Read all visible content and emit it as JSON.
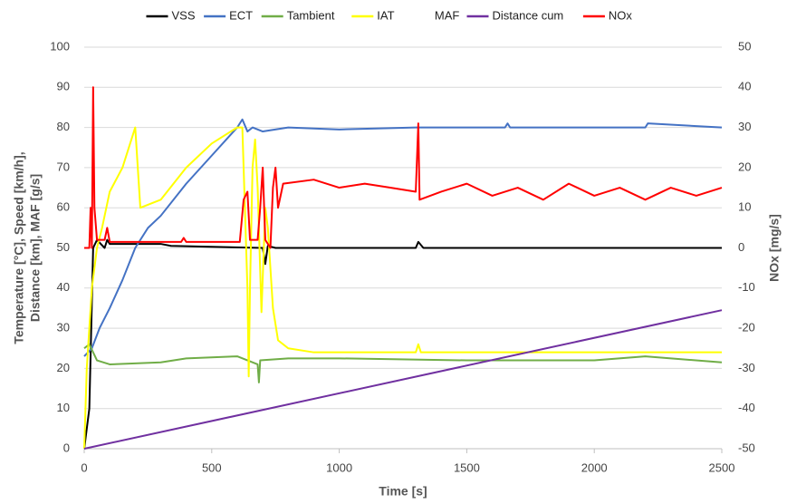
{
  "chart_data": {
    "type": "line",
    "xlabel": "Time [s]",
    "ylabel": [
      "Temperature [°C], Speed [km/h],",
      "Distance [km], MAF [g/s]"
    ],
    "y2label": "NOx [mg/s]",
    "xlim": [
      0,
      2500
    ],
    "xticks": [
      0,
      500,
      1000,
      1500,
      2000,
      2500
    ],
    "ylim": [
      0,
      100
    ],
    "yticks": [
      0,
      10,
      20,
      30,
      40,
      50,
      60,
      70,
      80,
      90,
      100
    ],
    "y2lim": [
      -50,
      50
    ],
    "y2ticks": [
      -50,
      -40,
      -30,
      -20,
      -10,
      0,
      10,
      20,
      30,
      40,
      50
    ],
    "grid": true,
    "legend": "top",
    "series": [
      {
        "name": "VSS",
        "color": "#000000",
        "x": [
          0,
          20,
          35,
          50,
          80,
          90,
          100,
          300,
          340,
          700,
          710,
          720,
          750,
          1300,
          1310,
          1330,
          2500
        ],
        "values": [
          0,
          10,
          50,
          52,
          50,
          52,
          51,
          51,
          50.5,
          50,
          46,
          50.5,
          50,
          50,
          51.5,
          50,
          50
        ]
      },
      {
        "name": "ECT",
        "color": "#4472c4",
        "x": [
          0,
          30,
          60,
          100,
          150,
          200,
          250,
          300,
          400,
          500,
          600,
          620,
          640,
          660,
          700,
          800,
          1000,
          1300,
          1650,
          1660,
          1670,
          2200,
          2210,
          2500
        ],
        "values": [
          23,
          25,
          30,
          35,
          42,
          50,
          55,
          58,
          66,
          73,
          80,
          82,
          79,
          80,
          79,
          80,
          79.5,
          80,
          80,
          81,
          80,
          80,
          81,
          80
        ]
      },
      {
        "name": "Tambient",
        "color": "#70ad47",
        "x": [
          0,
          20,
          50,
          100,
          300,
          400,
          600,
          680,
          685,
          690,
          800,
          1000,
          1500,
          2000,
          2200,
          2500
        ],
        "values": [
          25,
          26,
          22,
          21,
          21.5,
          22.5,
          23,
          21,
          16.5,
          22,
          22.5,
          22.5,
          22,
          22,
          23,
          21.5
        ]
      },
      {
        "name": "IAT",
        "color": "#ffff00",
        "x": [
          0,
          10,
          30,
          50,
          70,
          100,
          150,
          200,
          220,
          300,
          400,
          500,
          600,
          620,
          630,
          640,
          645,
          650,
          660,
          670,
          680,
          695,
          710,
          720,
          740,
          760,
          800,
          900,
          1300,
          1310,
          1320,
          2500
        ],
        "values": [
          0,
          20,
          40,
          50,
          55,
          64,
          70,
          80,
          60,
          62,
          70,
          76,
          80,
          80,
          60,
          40,
          18,
          40,
          70,
          77,
          65,
          34,
          60,
          55,
          35,
          27,
          25,
          24,
          24,
          26,
          24,
          24
        ]
      },
      {
        "name": "MAF",
        "color": "#ffffff",
        "x": [],
        "values": []
      },
      {
        "name": "Distance cum",
        "color": "#7030a0",
        "x": [
          0,
          2500
        ],
        "values": [
          0,
          34.5
        ]
      },
      {
        "name": "NOx",
        "color": "#ff0000",
        "axis": "y2",
        "x": [
          0,
          20,
          25,
          30,
          35,
          40,
          50,
          80,
          90,
          100,
          300,
          380,
          390,
          400,
          610,
          625,
          640,
          650,
          680,
          690,
          700,
          710,
          730,
          740,
          750,
          760,
          780,
          900,
          1000,
          1100,
          1200,
          1300,
          1310,
          1315,
          1400,
          1500,
          1600,
          1700,
          1800,
          1900,
          2000,
          2100,
          2200,
          2300,
          2400,
          2500
        ],
        "values": [
          0,
          0,
          10,
          0,
          40,
          10,
          2,
          2,
          5,
          1.5,
          1.5,
          1.5,
          2.5,
          1.5,
          1.5,
          12,
          14,
          2,
          2,
          10,
          20,
          2,
          0,
          15,
          20,
          10,
          16,
          17,
          15,
          16,
          15,
          14,
          31,
          12,
          14,
          16,
          13,
          15,
          12,
          16,
          13,
          15,
          12,
          15,
          13,
          15
        ]
      }
    ]
  }
}
